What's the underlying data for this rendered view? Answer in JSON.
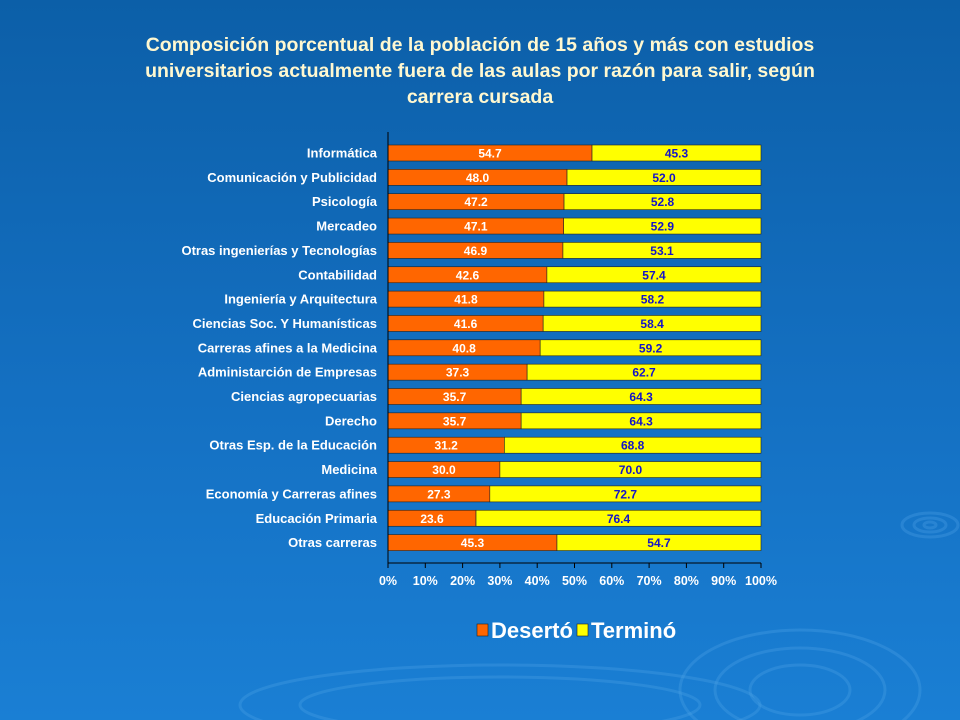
{
  "colors": {
    "series_a": "#ff6600",
    "series_b": "#ffff00",
    "value_a_text": "#ffffff",
    "value_b_text": "#1414c8",
    "bar_border": "#222222"
  },
  "chart_data": {
    "type": "bar",
    "orientation": "horizontal",
    "stacked": true,
    "percent": true,
    "title": "Composición porcentual de la población de 15 años y más con estudios universitarios actualmente fuera de las aulas por razón para salir, según carrera cursada",
    "categories": [
      "Informática",
      "Comunicación y Publicidad",
      "Psicología",
      "Mercadeo",
      "Otras ingenierías y Tecnologías",
      "Contabilidad",
      "Ingeniería y Arquitectura",
      "Ciencias Soc. Y Humanísticas",
      "Carreras afines a la Medicina",
      "Administarción de Empresas",
      "Ciencias agropecuarias",
      "Derecho",
      "Otras Esp. de la Educación",
      "Medicina",
      "Economía y Carreras afines",
      "Educación Primaria",
      "Otras carreras"
    ],
    "series": [
      {
        "name": "Desertó",
        "values": [
          54.7,
          48.0,
          47.2,
          47.1,
          46.9,
          42.6,
          41.8,
          41.6,
          40.8,
          37.3,
          35.7,
          35.7,
          31.2,
          30.0,
          27.3,
          23.6,
          45.3
        ]
      },
      {
        "name": "Terminó",
        "values": [
          45.3,
          52.0,
          52.8,
          52.9,
          53.1,
          57.4,
          58.2,
          58.4,
          59.2,
          62.7,
          64.3,
          64.3,
          68.8,
          70.0,
          72.7,
          76.4,
          54.7
        ]
      }
    ],
    "x_ticks": [
      "0%",
      "10%",
      "20%",
      "30%",
      "40%",
      "50%",
      "60%",
      "70%",
      "80%",
      "90%",
      "100%"
    ],
    "xlim": [
      0,
      100
    ],
    "grid": false,
    "legend_position": "bottom"
  }
}
